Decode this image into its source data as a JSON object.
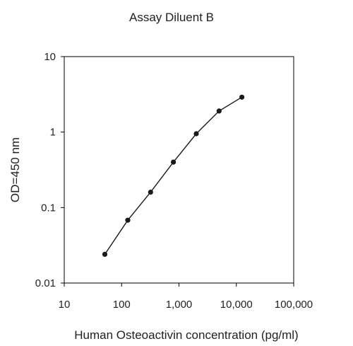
{
  "chart_data": {
    "type": "line",
    "title": "Assay Diluent B",
    "xlabel": "Human Osteoactivin concentration (pg/ml)",
    "ylabel": "OD=450 nm",
    "x_scale": "log",
    "y_scale": "log",
    "xlim": [
      10,
      100000
    ],
    "ylim": [
      0.01,
      10
    ],
    "x_ticks": [
      10,
      100,
      1000,
      10000,
      100000
    ],
    "x_tick_labels": [
      "10",
      "100",
      "1,000",
      "10,000",
      "100,000"
    ],
    "y_ticks": [
      0.01,
      0.1,
      1,
      10
    ],
    "y_tick_labels": [
      "0.01",
      "0.1",
      "1",
      "10"
    ],
    "grid": false,
    "legend": "none",
    "series": [
      {
        "x": [
          51,
          128,
          320,
          800,
          2000,
          5000,
          12500
        ],
        "y": [
          0.024,
          0.068,
          0.16,
          0.4,
          0.95,
          1.9,
          2.9
        ],
        "color": "#1a1a1a",
        "marker": "circle"
      }
    ]
  }
}
